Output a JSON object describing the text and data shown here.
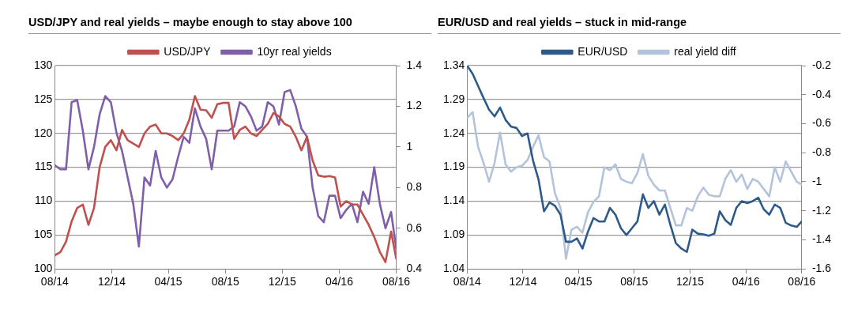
{
  "chart_data": [
    {
      "type": "line",
      "title": "USD/JPY and real yields – maybe enough to stay above 100",
      "legend": "top",
      "grid": "y",
      "marker": "none",
      "line_style": "solid",
      "x": [
        "2014-08-01",
        "2014-08-13",
        "2014-08-25",
        "2014-09-06",
        "2014-09-18",
        "2014-09-30",
        "2014-10-12",
        "2014-10-24",
        "2014-11-05",
        "2014-11-17",
        "2014-11-29",
        "2014-12-11",
        "2014-12-23",
        "2015-01-04",
        "2015-01-16",
        "2015-01-28",
        "2015-02-09",
        "2015-02-21",
        "2015-03-05",
        "2015-03-17",
        "2015-03-29",
        "2015-04-10",
        "2015-04-22",
        "2015-05-04",
        "2015-05-16",
        "2015-05-28",
        "2015-06-09",
        "2015-06-21",
        "2015-07-03",
        "2015-07-15",
        "2015-07-27",
        "2015-08-08",
        "2015-08-20",
        "2015-09-01",
        "2015-09-13",
        "2015-09-25",
        "2015-10-07",
        "2015-10-19",
        "2015-10-31",
        "2015-11-12",
        "2015-11-24",
        "2015-12-06",
        "2015-12-18",
        "2015-12-30",
        "2016-01-11",
        "2016-01-23",
        "2016-02-04",
        "2016-02-16",
        "2016-02-28",
        "2016-03-11",
        "2016-03-23",
        "2016-04-04",
        "2016-04-16",
        "2016-04-28",
        "2016-05-10",
        "2016-05-22",
        "2016-06-03",
        "2016-06-15",
        "2016-06-27",
        "2016-07-09",
        "2016-07-21",
        "2016-08-01"
      ],
      "xlim": [
        "2014-08-01",
        "2016-08-01"
      ],
      "xticks": [
        {
          "value": "2014-08-01",
          "label": "08/14"
        },
        {
          "value": "2014-12-01",
          "label": "12/14"
        },
        {
          "value": "2015-04-01",
          "label": "04/15"
        },
        {
          "value": "2015-08-01",
          "label": "08/15"
        },
        {
          "value": "2015-12-01",
          "label": "12/15"
        },
        {
          "value": "2016-04-01",
          "label": "04/16"
        },
        {
          "value": "2016-08-01",
          "label": "08/16"
        }
      ],
      "ylim": [
        100,
        130
      ],
      "yticks": [
        100,
        105,
        110,
        115,
        120,
        125,
        130
      ],
      "y2lim": [
        0.4,
        1.4
      ],
      "y2ticks": [
        0.4,
        0.6,
        0.8,
        1,
        1.2,
        1.4
      ],
      "series": [
        {
          "name": "USD/JPY",
          "color": "#c0504d",
          "values": [
            102,
            102.5,
            104,
            107,
            109,
            109.5,
            106.5,
            109,
            115,
            118,
            119,
            117.5,
            120.5,
            119,
            118.5,
            118,
            120,
            121,
            121.3,
            120,
            120,
            119.6,
            119,
            120,
            122,
            125.5,
            123.5,
            123.4,
            122.3,
            124.3,
            124.5,
            124.5,
            119.2,
            120.5,
            121,
            120,
            119.6,
            120.5,
            121.4,
            123,
            122.5,
            121.4,
            121,
            119.5,
            117.5,
            119.5,
            116,
            113.8,
            113.6,
            113.7,
            113.5,
            109.2,
            110,
            109.5,
            109.5,
            108,
            106.5,
            104.7,
            102.5,
            101,
            105.5,
            101.5
          ]
        },
        {
          "name": "10yr real yields",
          "color": "#7f5fa8",
          "axis": "y2",
          "values": [
            0.91,
            0.89,
            0.89,
            1.22,
            1.23,
            1.08,
            0.89,
            1.0,
            1.16,
            1.25,
            1.22,
            1.07,
            0.98,
            0.85,
            0.72,
            0.51,
            0.85,
            0.81,
            0.98,
            0.85,
            0.8,
            0.84,
            0.95,
            1.05,
            1.02,
            1.19,
            1.1,
            1.04,
            0.89,
            1.08,
            1.08,
            1.08,
            1.1,
            1.22,
            1.2,
            1.15,
            1.08,
            1.1,
            1.22,
            1.2,
            1.11,
            1.27,
            1.28,
            1.2,
            1.09,
            1.05,
            0.8,
            0.66,
            0.63,
            0.76,
            0.76,
            0.65,
            0.69,
            0.72,
            0.63,
            0.78,
            0.72,
            0.9,
            0.72,
            0.6,
            0.68,
            0.5
          ]
        }
      ]
    },
    {
      "type": "line",
      "title": "EUR/USD and real yields – stuck in mid-range",
      "legend": "top",
      "grid": "y",
      "marker": "none",
      "line_style": "solid",
      "x": [
        "2014-08-01",
        "2014-08-13",
        "2014-08-25",
        "2014-09-06",
        "2014-09-18",
        "2014-09-30",
        "2014-10-12",
        "2014-10-24",
        "2014-11-05",
        "2014-11-17",
        "2014-11-29",
        "2014-12-11",
        "2014-12-23",
        "2015-01-04",
        "2015-01-16",
        "2015-01-28",
        "2015-02-09",
        "2015-02-21",
        "2015-03-05",
        "2015-03-17",
        "2015-03-29",
        "2015-04-10",
        "2015-04-22",
        "2015-05-04",
        "2015-05-16",
        "2015-05-28",
        "2015-06-09",
        "2015-06-21",
        "2015-07-03",
        "2015-07-15",
        "2015-07-27",
        "2015-08-08",
        "2015-08-20",
        "2015-09-01",
        "2015-09-13",
        "2015-09-25",
        "2015-10-07",
        "2015-10-19",
        "2015-10-31",
        "2015-11-12",
        "2015-11-24",
        "2015-12-06",
        "2015-12-18",
        "2015-12-30",
        "2016-01-11",
        "2016-01-23",
        "2016-02-04",
        "2016-02-16",
        "2016-02-28",
        "2016-03-11",
        "2016-03-23",
        "2016-04-04",
        "2016-04-16",
        "2016-04-28",
        "2016-05-10",
        "2016-05-22",
        "2016-06-03",
        "2016-06-15",
        "2016-06-27",
        "2016-07-09",
        "2016-07-21",
        "2016-08-01"
      ],
      "xlim": [
        "2014-08-01",
        "2016-08-01"
      ],
      "xticks": [
        {
          "value": "2014-08-01",
          "label": "08/14"
        },
        {
          "value": "2014-12-01",
          "label": "12/14"
        },
        {
          "value": "2015-04-01",
          "label": "04/15"
        },
        {
          "value": "2015-08-01",
          "label": "08/15"
        },
        {
          "value": "2015-12-01",
          "label": "12/15"
        },
        {
          "value": "2016-04-01",
          "label": "04/16"
        },
        {
          "value": "2016-08-01",
          "label": "08/16"
        }
      ],
      "ylim": [
        1.04,
        1.34
      ],
      "yticks": [
        1.04,
        1.09,
        1.14,
        1.19,
        1.24,
        1.29,
        1.34
      ],
      "y2lim": [
        -1.6,
        -0.2
      ],
      "y2ticks": [
        -1.6,
        -1.4,
        -1.2,
        -1,
        -0.8,
        -0.6,
        -0.4,
        -0.2
      ],
      "series": [
        {
          "name": "EUR/USD",
          "color": "#2e5a8a",
          "values": [
            1.34,
            1.328,
            1.31,
            1.292,
            1.275,
            1.265,
            1.278,
            1.26,
            1.25,
            1.248,
            1.236,
            1.24,
            1.2,
            1.172,
            1.125,
            1.138,
            1.133,
            1.12,
            1.08,
            1.08,
            1.085,
            1.07,
            1.095,
            1.115,
            1.11,
            1.11,
            1.13,
            1.12,
            1.1,
            1.09,
            1.1,
            1.11,
            1.15,
            1.13,
            1.14,
            1.12,
            1.135,
            1.105,
            1.078,
            1.07,
            1.065,
            1.098,
            1.092,
            1.091,
            1.089,
            1.092,
            1.125,
            1.112,
            1.105,
            1.13,
            1.14,
            1.137,
            1.14,
            1.145,
            1.128,
            1.12,
            1.135,
            1.13,
            1.108,
            1.104,
            1.102,
            1.11
          ]
        },
        {
          "name": "real yield diff",
          "color": "#b4c3dc",
          "axis": "y2",
          "values": [
            -0.56,
            -0.52,
            -0.76,
            -0.87,
            -1.0,
            -0.87,
            -0.66,
            -0.88,
            -0.93,
            -0.9,
            -0.89,
            -0.85,
            -0.76,
            -0.68,
            -0.83,
            -0.86,
            -1.08,
            -1.18,
            -1.53,
            -1.33,
            -1.31,
            -1.35,
            -1.21,
            -1.14,
            -1.1,
            -0.9,
            -0.92,
            -0.88,
            -0.98,
            -1.0,
            -1.01,
            -0.94,
            -0.81,
            -0.96,
            -1.02,
            -1.06,
            -1.06,
            -1.18,
            -1.3,
            -1.3,
            -1.18,
            -1.2,
            -1.1,
            -1.04,
            -1.09,
            -1.1,
            -1.1,
            -0.98,
            -0.92,
            -1.0,
            -0.95,
            -1.05,
            -0.98,
            -1.0,
            -1.05,
            -1.1,
            -0.9,
            -1.0,
            -0.86,
            -0.93,
            -1.0,
            -1.02
          ]
        }
      ]
    }
  ]
}
